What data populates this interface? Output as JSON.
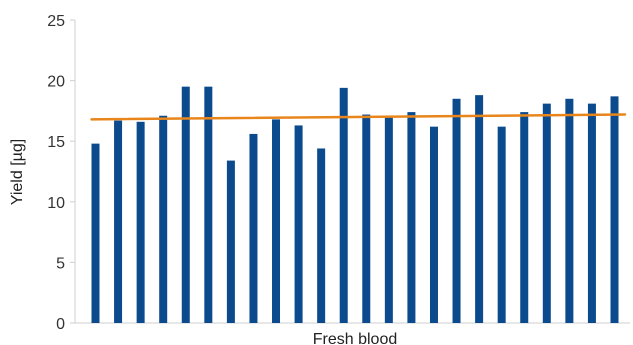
{
  "chart_data": {
    "type": "bar",
    "title": "",
    "xlabel": "Fresh blood",
    "ylabel": "Yield [µg]",
    "ylim": [
      0,
      25
    ],
    "yticks": [
      0,
      5,
      10,
      15,
      20,
      25
    ],
    "ytick_labels": [
      "0",
      "5",
      "10",
      "15",
      "20",
      "25"
    ],
    "grid": false,
    "legend": "none",
    "series": [
      {
        "values": [
          14.8,
          16.7,
          16.6,
          17.1,
          19.5,
          19.5,
          13.4,
          15.6,
          16.8,
          16.3,
          14.4,
          19.4,
          17.2,
          17.0,
          17.4,
          16.2,
          18.5,
          18.8,
          16.2,
          17.4,
          18.1,
          18.5,
          18.1,
          18.7
        ],
        "color": "#0b4a8c"
      }
    ],
    "trendline": {
      "start": 16.8,
      "end": 17.2,
      "color": "#e8861c"
    }
  }
}
